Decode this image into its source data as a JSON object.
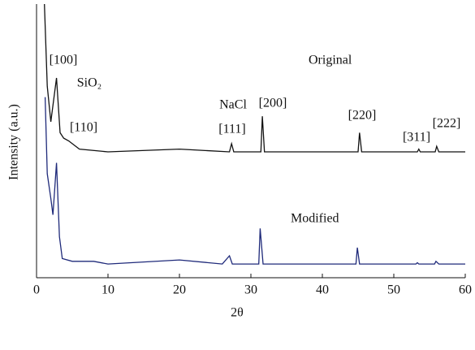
{
  "chart_data": {
    "type": "line",
    "xlabel": "2θ",
    "ylabel": "Intensity (a.u.)",
    "xlim": [
      0,
      60
    ],
    "xticks": [
      0,
      10,
      20,
      30,
      40,
      50,
      60
    ],
    "ylim": [
      0,
      100
    ],
    "series": [
      {
        "name": "Original",
        "color": "#111111",
        "x": [
          1.1,
          1.5,
          2,
          2.8,
          3.3,
          3.8,
          4.5,
          6,
          10,
          20,
          27,
          27.3,
          27.6,
          31.4,
          31.6,
          31.9,
          45,
          45.2,
          45.5,
          53.3,
          53.5,
          53.7,
          55.8,
          56,
          56.3,
          60
        ],
        "values": [
          100,
          70,
          57,
          73,
          53,
          51,
          50,
          47,
          46,
          47,
          46,
          49,
          46,
          46,
          59,
          46,
          46,
          53,
          46,
          46,
          47,
          46,
          46,
          48,
          46,
          46
        ]
      },
      {
        "name": "Modified",
        "color": "#1f2a7a",
        "x": [
          1.2,
          1.5,
          2,
          2.3,
          2.8,
          3.2,
          3.6,
          5,
          8,
          10,
          20,
          26,
          27,
          27.4,
          31.1,
          31.3,
          31.7,
          44.7,
          44.9,
          45.2,
          53.1,
          53.3,
          53.5,
          55.7,
          55.9,
          56.3,
          60
        ],
        "values": [
          66,
          38,
          29,
          23,
          42,
          15,
          7,
          6,
          6,
          5,
          6.5,
          5,
          8,
          5,
          5,
          18,
          5,
          5,
          11,
          5,
          5,
          5.5,
          5,
          5,
          6,
          5,
          5
        ]
      }
    ],
    "annotations": [
      "[100]",
      "SiO₂",
      "[110]",
      "NaCl",
      "[200]",
      "[111]",
      "[220]",
      "[311]",
      "[222]"
    ]
  }
}
